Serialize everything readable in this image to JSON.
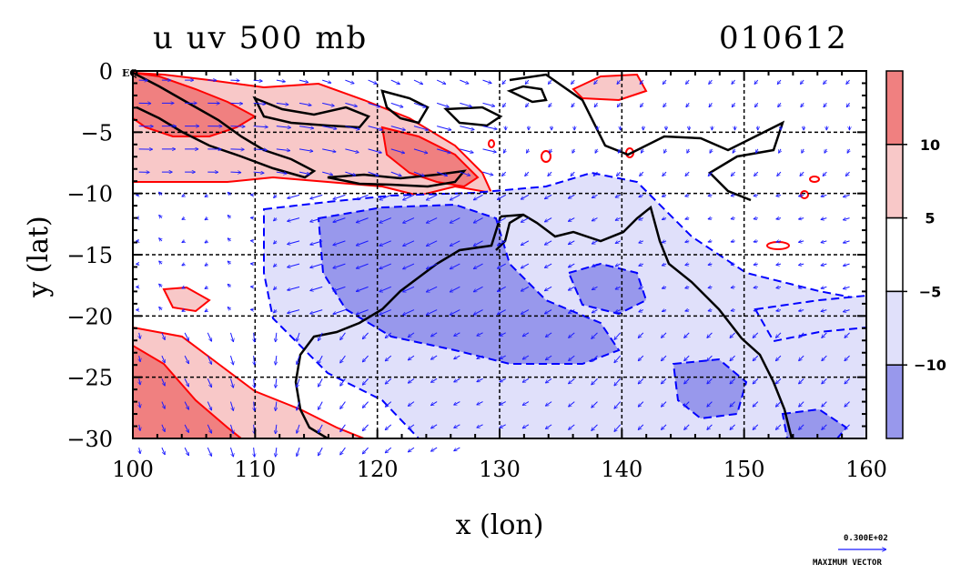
{
  "title_left": "u uv 500 mb",
  "title_right": "010612",
  "eq_label": "EQ",
  "chart_data": {
    "type": "heatmap",
    "title": "u uv 500 mb",
    "date_label": "010612",
    "xlabel": "x (lon)",
    "ylabel": "y (lat)",
    "xlim": [
      100,
      160
    ],
    "ylim": [
      -30,
      0
    ],
    "x_ticks": [
      100,
      110,
      120,
      130,
      140,
      150,
      160
    ],
    "y_ticks": [
      0,
      -5,
      -10,
      -15,
      -20,
      -25,
      -30
    ],
    "y_tick_labels": [
      "0",
      "−5",
      "−10",
      "−15",
      "−20",
      "−25",
      "−30"
    ],
    "grid": true,
    "colorbar": {
      "levels": [
        "10",
        "5",
        "−5",
        "−10"
      ],
      "colors": [
        "#f08080",
        "#f8c8c8",
        "#ffffff",
        "#e0e0fa",
        "#9898ec"
      ]
    },
    "vector_key": {
      "value": "0.300E+02",
      "label": "MAXIMUM VECTOR"
    },
    "colors": {
      "positive_contour": "#ff0000",
      "negative_contour": "#0000ff",
      "vectors": "#1a1aff",
      "coastline": "#000000"
    }
  }
}
